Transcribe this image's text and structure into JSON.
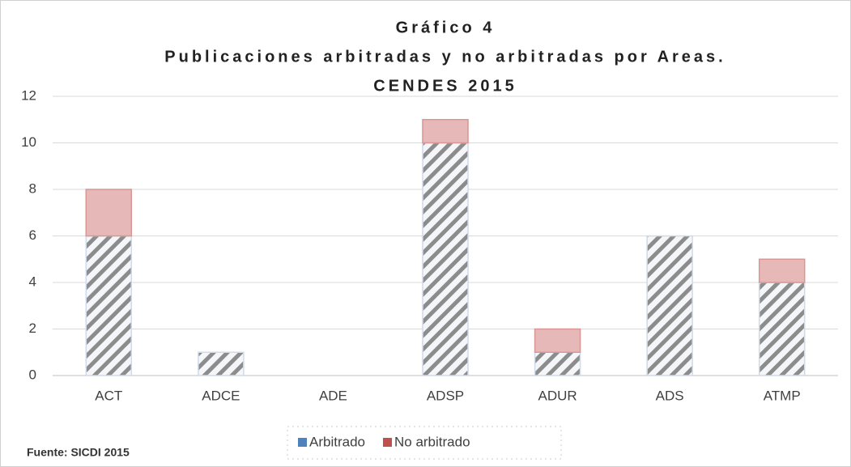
{
  "chart_data": {
    "type": "stacked_bar",
    "title": [
      "Gráfico 4",
      "Publicaciones arbitradas y no arbitradas por Areas.",
      "CENDES 2015"
    ],
    "categories": [
      "ACT",
      "ADCE",
      "ADE",
      "ADSP",
      "ADUR",
      "ADS",
      "ATMP"
    ],
    "series": [
      {
        "name": "Arbitrado",
        "color": "#4f81bd",
        "values": [
          6,
          1,
          0,
          10,
          1,
          6,
          4
        ]
      },
      {
        "name": "No arbitrado",
        "color": "#c0504d",
        "values": [
          2,
          0,
          0,
          1,
          1,
          0,
          1
        ]
      }
    ],
    "ylim": [
      0,
      12
    ],
    "yticks": [
      0,
      2,
      4,
      6,
      8,
      10,
      12
    ],
    "grid": true,
    "legend": "bottom",
    "source": "Fuente: SICDI 2015"
  }
}
